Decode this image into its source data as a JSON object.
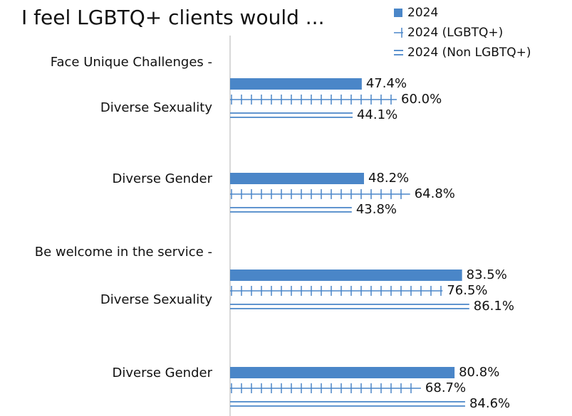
{
  "chart_data": {
    "type": "bar",
    "orientation": "horizontal",
    "title": "I feel LGBTQ+ clients would ...",
    "categories": [
      "Face Unique Challenges -",
      "Diverse Sexuality",
      "Diverse Gender",
      "Be welcome in the service -",
      "Diverse Sexuality",
      "Diverse Gender"
    ],
    "xlim": [
      0,
      100
    ],
    "series": [
      {
        "name": "2024",
        "color": "#4a86c8",
        "style": "solid",
        "values": [
          null,
          47.4,
          48.2,
          null,
          83.5,
          80.8
        ],
        "value_labels": [
          null,
          "47.4%",
          "48.2%",
          null,
          "83.5%",
          "80.8%"
        ]
      },
      {
        "name": "2024 (LGBTQ+)",
        "color": "#4a86c8",
        "style": "ticked",
        "values": [
          null,
          60.0,
          64.8,
          null,
          76.5,
          68.7
        ],
        "value_labels": [
          null,
          "60.0%",
          "64.8%",
          null,
          "76.5%",
          "68.7%"
        ]
      },
      {
        "name": "2024 (Non LGBTQ+)",
        "color": "#4a86c8",
        "style": "double",
        "values": [
          null,
          44.1,
          43.8,
          null,
          86.1,
          84.6
        ],
        "value_labels": [
          null,
          "44.1%",
          "43.8%",
          null,
          "86.1%",
          "84.6%"
        ]
      }
    ],
    "legend": "top-right"
  }
}
